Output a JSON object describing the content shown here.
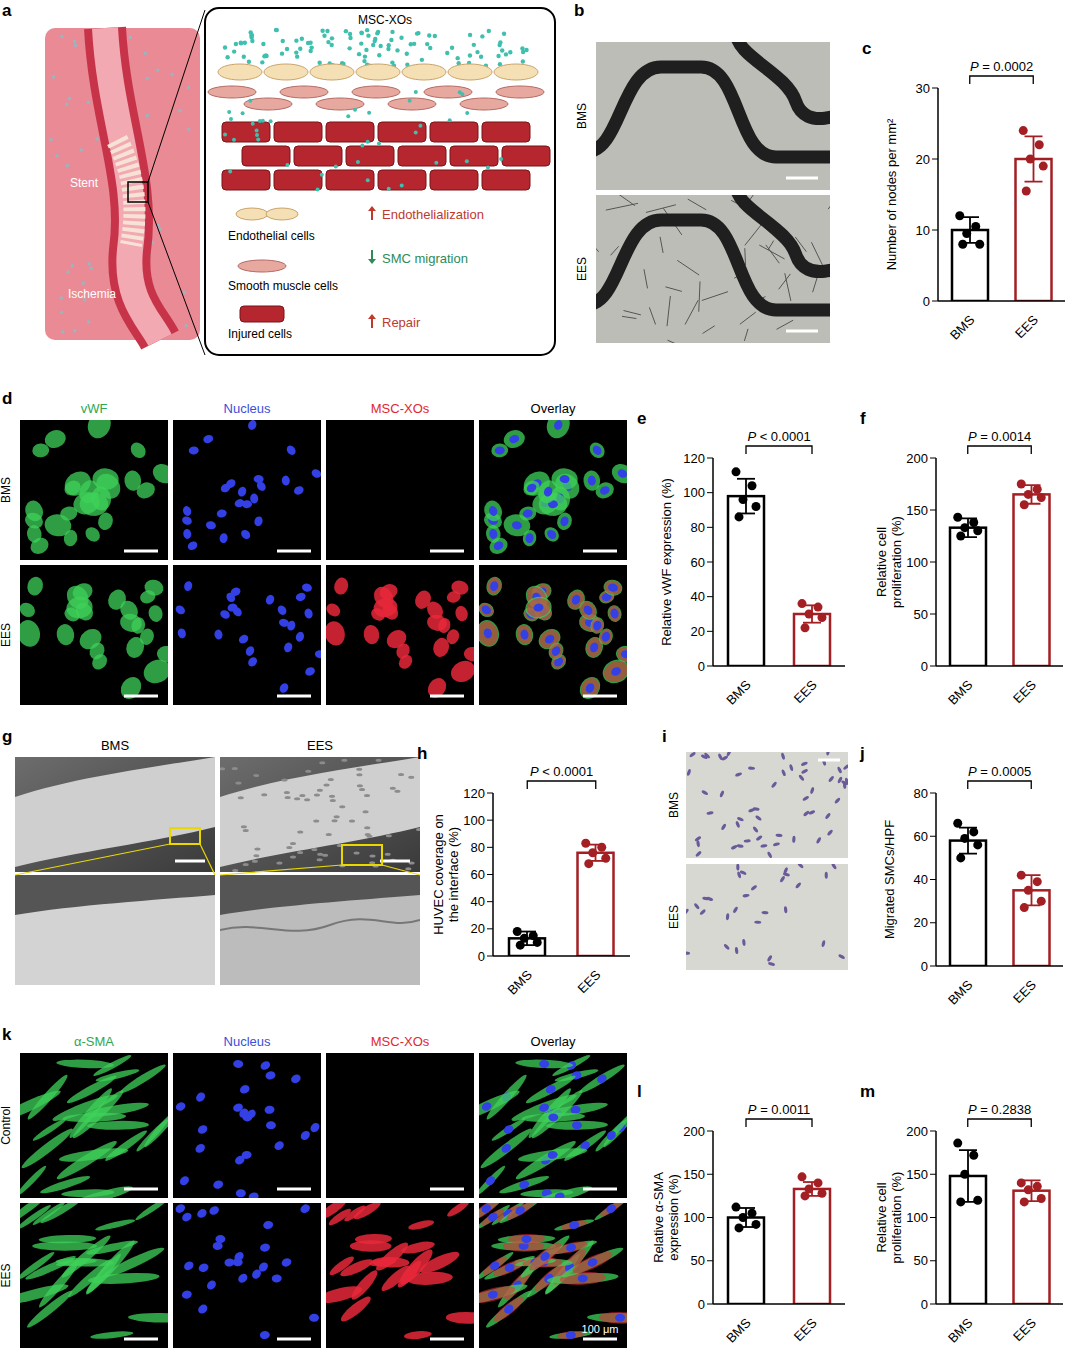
{
  "chart_data": [
    {
      "panel": "c",
      "type": "bar",
      "categories": [
        "BMS",
        "EES"
      ],
      "values": [
        10,
        20
      ],
      "errors": [
        1.8,
        3.2
      ],
      "points": [
        [
          12,
          10.5,
          9.5,
          8,
          8
        ],
        [
          24,
          22,
          20,
          19,
          15.5
        ]
      ],
      "colors": [
        "#000000",
        "#a31f24"
      ],
      "ylabel": "Number of nodes per mm²",
      "ylim": [
        0,
        30
      ],
      "yticks": [
        0,
        10,
        20,
        30
      ],
      "annotation": "P = 0.0002"
    },
    {
      "panel": "e",
      "type": "bar",
      "categories": [
        "BMS",
        "EES"
      ],
      "values": [
        98,
        30
      ],
      "errors": [
        10,
        5
      ],
      "points": [
        [
          112,
          104,
          96,
          92,
          86
        ],
        [
          36,
          34,
          30,
          28,
          22
        ]
      ],
      "colors": [
        "#000000",
        "#a31f24"
      ],
      "ylabel": "Relative vWF expression (%)",
      "ylim": [
        0,
        120
      ],
      "yticks": [
        0,
        20,
        40,
        60,
        80,
        100,
        120
      ],
      "annotation": "P < 0.0001"
    },
    {
      "panel": "f",
      "type": "bar",
      "categories": [
        "BMS",
        "EES"
      ],
      "values": [
        133,
        165
      ],
      "errors": [
        9,
        9
      ],
      "points": [
        [
          143,
          138,
          133,
          130,
          125
        ],
        [
          175,
          170,
          165,
          162,
          155
        ]
      ],
      "colors": [
        "#000000",
        "#a31f24"
      ],
      "ylabel": "Relative cell proliferation (%)",
      "ylim": [
        0,
        200
      ],
      "yticks": [
        0,
        50,
        100,
        150,
        200
      ],
      "annotation": "P = 0.0014"
    },
    {
      "panel": "h",
      "type": "bar",
      "categories": [
        "BMS",
        "EES"
      ],
      "values": [
        13,
        76
      ],
      "errors": [
        5,
        6
      ],
      "points": [
        [
          18,
          15,
          13,
          10,
          8
        ],
        [
          83,
          80,
          76,
          72,
          68
        ]
      ],
      "colors": [
        "#000000",
        "#a31f24"
      ],
      "ylabel": "HUVEC coverage on the interface (%)",
      "ylim": [
        0,
        120
      ],
      "yticks": [
        0,
        20,
        40,
        60,
        80,
        100,
        120
      ],
      "annotation": "P < 0.0001"
    },
    {
      "panel": "j",
      "type": "bar",
      "categories": [
        "BMS",
        "EES"
      ],
      "values": [
        58,
        35
      ],
      "errors": [
        6,
        7
      ],
      "points": [
        [
          66,
          62,
          59,
          56,
          50
        ],
        [
          42,
          39,
          35,
          30,
          27
        ]
      ],
      "colors": [
        "#000000",
        "#a31f24"
      ],
      "ylabel": "Migrated SMCs/HPF",
      "ylim": [
        0,
        80
      ],
      "yticks": [
        0,
        20,
        40,
        60,
        80
      ],
      "annotation": "P = 0.0005"
    },
    {
      "panel": "l",
      "type": "bar",
      "categories": [
        "BMS",
        "EES"
      ],
      "values": [
        100,
        133
      ],
      "errors": [
        11,
        8
      ],
      "points": [
        [
          112,
          105,
          100,
          92,
          88
        ],
        [
          147,
          140,
          133,
          128,
          125
        ]
      ],
      "colors": [
        "#000000",
        "#a31f24"
      ],
      "ylabel": "Relative α-SMA expression (%)",
      "ylim": [
        0,
        200
      ],
      "yticks": [
        0,
        50,
        100,
        150,
        200
      ],
      "annotation": "P = 0.0011"
    },
    {
      "panel": "m",
      "type": "bar",
      "categories": [
        "BMS",
        "EES"
      ],
      "values": [
        148,
        131
      ],
      "errors": [
        30,
        12
      ],
      "points": [
        [
          186,
          172,
          150,
          120,
          118
        ],
        [
          140,
          136,
          132,
          122,
          118
        ]
      ],
      "colors": [
        "#000000",
        "#a31f24"
      ],
      "ylabel": "Relative cell proliferation (%)",
      "ylim": [
        0,
        200
      ],
      "yticks": [
        0,
        50,
        100,
        150,
        200
      ],
      "annotation": "P = 0.2838"
    }
  ],
  "images": {
    "a": {
      "letter": "a",
      "title": "MSC-XOs",
      "labels": [
        "Stent",
        "Ischemia"
      ],
      "cells": [
        "Endothelial cells",
        "Smooth muscle cells",
        "Injured cells"
      ],
      "effects": [
        {
          "text": "Endothelialization",
          "direction": "up",
          "color": "#c0392b"
        },
        {
          "text": "SMC migration",
          "direction": "down",
          "color": "#2e8b57"
        },
        {
          "text": "Repair",
          "direction": "up",
          "color": "#c0392b"
        }
      ]
    },
    "b": {
      "letter": "b",
      "rows": [
        "BMS",
        "EES"
      ]
    },
    "d": {
      "letter": "d",
      "columns": [
        "vWF",
        "Nucleus",
        "MSC-XOs",
        "Overlay"
      ],
      "colors": [
        "#2fa84f",
        "#3b4fd8",
        "#e0282e",
        "#000000"
      ],
      "rows": [
        "BMS",
        "EES"
      ]
    },
    "g": {
      "letter": "g",
      "columns": [
        "BMS",
        "EES"
      ]
    },
    "i": {
      "letter": "i",
      "rows": [
        "BMS",
        "EES"
      ]
    },
    "k": {
      "letter": "k",
      "columns": [
        "α-SMA",
        "Nucleus",
        "MSC-XOs",
        "Overlay"
      ],
      "colors": [
        "#2fa84f",
        "#3b4fd8",
        "#e0282e",
        "#000000"
      ],
      "rows": [
        "Control",
        "EES"
      ],
      "scale_bar": "100 μm"
    }
  }
}
